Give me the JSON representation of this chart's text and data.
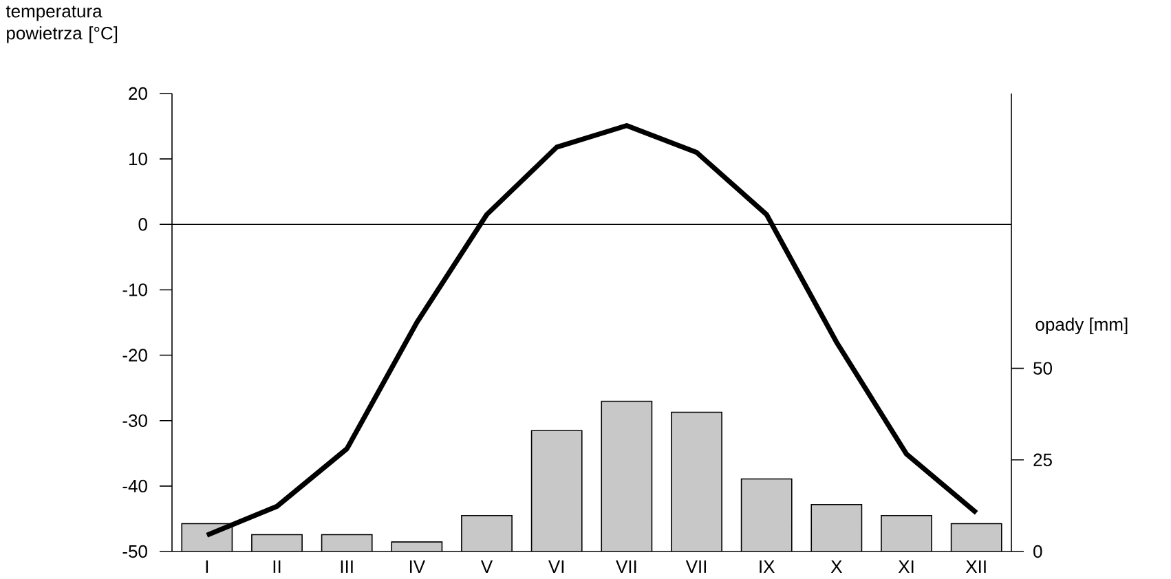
{
  "chart_data": {
    "type": "bar",
    "ylabel": "temperatura powietrza [°C]",
    "y2label": "opady [mm]",
    "categories": [
      "I",
      "II",
      "III",
      "IV",
      "V",
      "VI",
      "VII",
      "VII",
      "IX",
      "X",
      "XI",
      "XII"
    ],
    "series": [
      {
        "axis": "y2",
        "color": "#c8c8c8",
        "values": [
          7.6,
          4.6,
          4.6,
          2.6,
          9.8,
          33,
          41,
          38,
          19.8,
          12.8,
          9.8,
          7.6
        ]
      },
      {
        "type": "line",
        "color": "#000000",
        "values": [
          -47.5,
          -43.1,
          -34.3,
          -15,
          1.5,
          11.8,
          15.1,
          11,
          1.5,
          -18,
          -35.1,
          -44.1
        ]
      }
    ],
    "ylim": [
      -50,
      20
    ],
    "yticks": [
      -50,
      -40,
      -30,
      -20,
      -10,
      0,
      10,
      20
    ],
    "y2lim": [
      0,
      125
    ],
    "y2ticks": [
      0,
      25,
      50
    ],
    "ref_lines": [
      {
        "axis": "y",
        "value": 0,
        "color": "#000000"
      }
    ]
  }
}
